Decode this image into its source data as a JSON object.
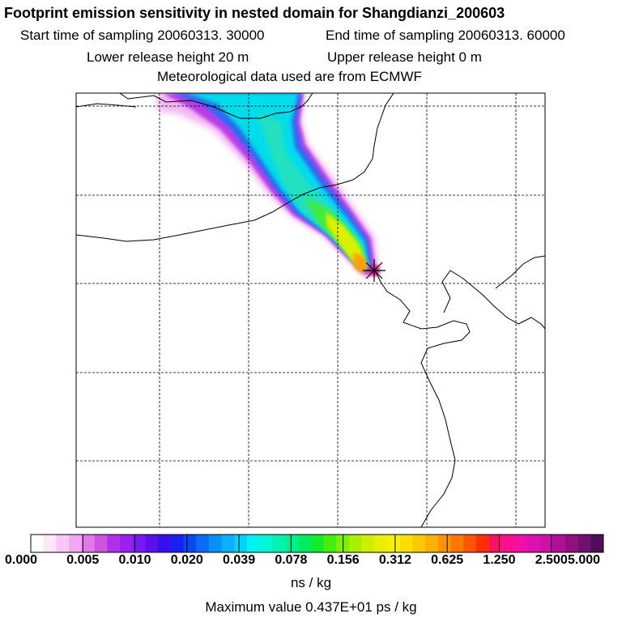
{
  "header": {
    "title": "Footprint emission sensitivity in nested domain for Shangdianzi_200603",
    "start_time": "Start time of sampling 20060313. 30000",
    "end_time": "End time of sampling 20060313. 60000",
    "lower_height": "Lower release height   20 m",
    "upper_height": "Upper release height    0 m",
    "met_data": "Meteorological data used are from ECMWF"
  },
  "colorbar": {
    "tick_labels": [
      "0.000",
      "0.005",
      "0.010",
      "0.020",
      "0.039",
      "0.078",
      "0.156",
      "0.312",
      "0.625",
      "1.250",
      "2.500",
      "5.000"
    ],
    "colors": [
      "#ffffff",
      "#fce6fc",
      "#f7c8f7",
      "#f0a8f0",
      "#e07ae6",
      "#cc55e0",
      "#b030e8",
      "#9a20ee",
      "#7a18f2",
      "#5810f0",
      "#3810ee",
      "#1a20f0",
      "#0a48f4",
      "#0a6cf6",
      "#0a8ef8",
      "#0ab0fa",
      "#00d2fa",
      "#00f2f0",
      "#00f6d4",
      "#00f2b0",
      "#00ee8c",
      "#00ec60",
      "#10ec30",
      "#44ee10",
      "#7cf000",
      "#a8f000",
      "#ccf000",
      "#e8f000",
      "#f8f000",
      "#fae000",
      "#fcc800",
      "#fcb000",
      "#fc9400",
      "#fc7800",
      "#fc5400",
      "#fc3000",
      "#fc1060",
      "#fc1090",
      "#f010a8",
      "#e010b0",
      "#cc10a8",
      "#b01098",
      "#901080",
      "#701070",
      "#501058"
    ],
    "units": "ns / kg"
  },
  "max_value": "Maximum value  0.437E+01 ps / kg",
  "receptor": {
    "marker": "star-icon"
  }
}
